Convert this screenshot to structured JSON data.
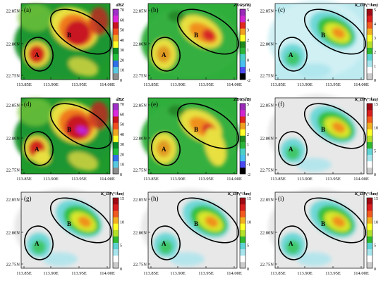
{
  "panels": [
    {
      "letter": "(a)",
      "var": "dBZ",
      "ticks": [
        "70",
        "60",
        "50",
        "40",
        "30",
        "20",
        "10",
        "0"
      ]
    },
    {
      "letter": "(b)",
      "var": "ZDR(dB)",
      "ticks": [
        "5",
        "4",
        "3",
        "2",
        "1",
        "0",
        "-1",
        "-2"
      ]
    },
    {
      "letter": "(c)",
      "var": "K_DP(°/km)",
      "ticks": [
        "5",
        "4",
        "3",
        "2",
        "1",
        "0"
      ]
    },
    {
      "letter": "(d)",
      "var": "dBZ",
      "ticks": [
        "70",
        "60",
        "50",
        "40",
        "30",
        "20",
        "10",
        "0"
      ]
    },
    {
      "letter": "(e)",
      "var": "ZDR(dB)",
      "ticks": [
        "5",
        "4",
        "3",
        "2",
        "1",
        "0",
        "-1",
        "-2"
      ]
    },
    {
      "letter": "(f)",
      "var": "K_DP(°/km)",
      "ticks": [
        "15",
        "10",
        "5",
        "0"
      ]
    },
    {
      "letter": "(g)",
      "var": "K_DP(°/km)",
      "ticks": [
        "15",
        "10",
        "5",
        "0"
      ]
    },
    {
      "letter": "(h)",
      "var": "K_DP(°/km)",
      "ticks": [
        "15",
        "10",
        "5",
        "0"
      ]
    },
    {
      "letter": "(i)",
      "var": "K_DP(°/km)",
      "ticks": [
        "15",
        "10",
        "5",
        "0"
      ]
    }
  ],
  "region_labels": [
    "A",
    "B"
  ],
  "x_ticks": [
    "113.85E",
    "113.90E",
    "113.95E",
    "114.00E"
  ],
  "y_ticks": [
    "22.85N",
    "22.80N",
    "22.75N"
  ],
  "colorbars": {
    "dBZ": [
      "#8c8c8c",
      "#58c8e0",
      "#2f6fe8",
      "#22c03a",
      "#0c8a24",
      "#ffff2a",
      "#f0a820",
      "#f0501e",
      "#c8141e",
      "#dc28dc",
      "#a030c8"
    ],
    "ZDR": [
      "#000000",
      "#4a4af0",
      "#48c0f0",
      "#4ad0c8",
      "#2ab43a",
      "#1e8a1e",
      "#ffff2a",
      "#f0a020",
      "#e0281e",
      "#d028d0",
      "#9a2ab8"
    ],
    "KDP": [
      "#cccccc",
      "#ffffff",
      "#a8e4ec",
      "#60d4d4",
      "#30b830",
      "#b4e02a",
      "#ffff2a",
      "#f0b020",
      "#f05a1e",
      "#d81e1e",
      "#a00a14"
    ]
  }
}
